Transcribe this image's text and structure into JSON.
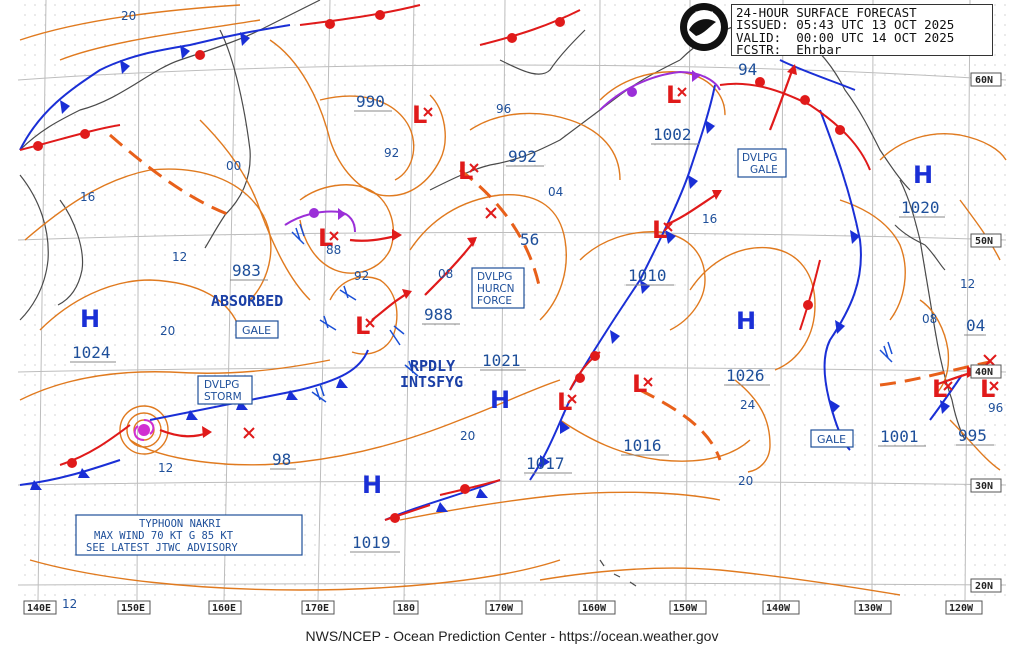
{
  "header": {
    "title": "24-HOUR SURFACE FORECAST",
    "issued_label": "ISSUED:",
    "issued_value": "05:43 UTC 13 OCT 2025",
    "valid_label": "VALID:",
    "valid_value": "00:00 UTC 14 OCT 2025",
    "forecaster_label": "FCSTR:",
    "forecaster_value": "Ehrbar",
    "logo_text": "NOAA"
  },
  "footer": "NWS/NCEP - Ocean Prediction Center - https://ocean.weather.gov",
  "axes": {
    "longitude_labels": [
      "140E",
      "150E",
      "160E",
      "170E",
      "180",
      "170W",
      "160W",
      "150W",
      "140W",
      "130W",
      "120W"
    ],
    "latitude_labels": [
      "60N",
      "50N",
      "40N",
      "30N",
      "20N"
    ]
  },
  "pressure_centers": [
    {
      "type": "H",
      "value": "1024"
    },
    {
      "type": "H",
      "value": "1021"
    },
    {
      "type": "H",
      "value": "1019"
    },
    {
      "type": "H",
      "value": "1026"
    },
    {
      "type": "H",
      "value": "1020"
    },
    {
      "type": "L",
      "value": "990"
    },
    {
      "type": "L",
      "value": "992"
    },
    {
      "type": "L",
      "value": "983"
    },
    {
      "type": "L",
      "value": "988"
    },
    {
      "type": "L",
      "value": "1002"
    },
    {
      "type": "L",
      "value": "1010"
    },
    {
      "type": "L",
      "value": "1017"
    },
    {
      "type": "L",
      "value": "1016"
    },
    {
      "type": "L",
      "value": "94"
    },
    {
      "type": "L",
      "value": "1001"
    },
    {
      "type": "L",
      "value": "995"
    },
    {
      "type": "L",
      "value": "04"
    },
    {
      "type": "L",
      "value": "98"
    }
  ],
  "isobar_labels": [
    "20",
    "16",
    "12",
    "20",
    "12",
    "00",
    "92",
    "88",
    "92",
    "08",
    "56",
    "04",
    "96",
    "16",
    "24",
    "20",
    "20",
    "12",
    "08",
    "12",
    "96",
    "12"
  ],
  "annotations": {
    "absorbed": "ABSORBED",
    "rpdly_1": "RPDLY",
    "rpdly_2": "INTSFYG",
    "gale_1": "GALE",
    "gale_2": "GALE",
    "storm_1": "DVLPG",
    "storm_2": "STORM",
    "hurcn_1": "DVLPG",
    "hurcn_2": "HURCN",
    "hurcn_3": "FORCE",
    "dvlpg_gale_1": "DVLPG",
    "dvlpg_gale_2": "GALE",
    "typhoon_1": "TYPHOON NAKRI",
    "typhoon_2": "MAX WIND 70 KT G 85 KT",
    "typhoon_3": "SEE LATEST JTWC ADVISORY"
  },
  "colors": {
    "isobar": "#e07a1f",
    "cold_front": "#1a2fd6",
    "warm_front": "#e01a1a",
    "occluded_front": "#9b2fd8",
    "low_symbol": "#e01a1a",
    "high_symbol": "#1a2fd6",
    "label_blue": "#1e4f9a",
    "grid": "#c9c9c9",
    "coastline": "#555555"
  }
}
